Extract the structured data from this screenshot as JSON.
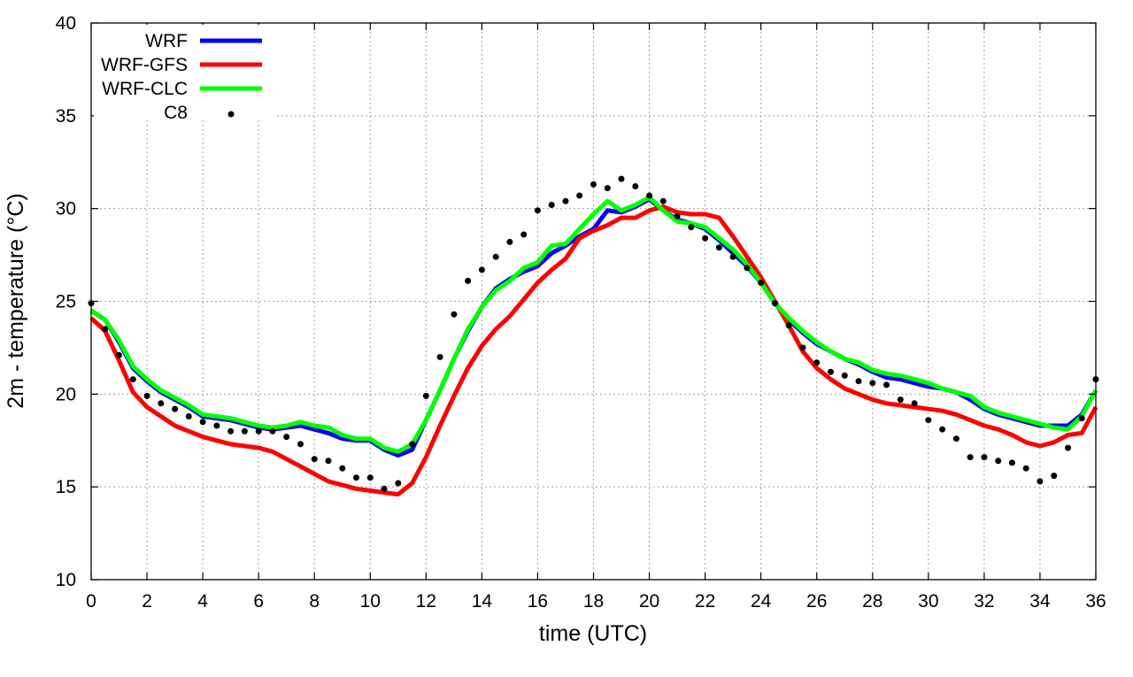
{
  "chart_data": {
    "type": "line",
    "title": "",
    "xlabel": "time (UTC)",
    "ylabel": "2m - temperature (°C)",
    "xlim": [
      0,
      36
    ],
    "ylim": [
      10,
      40
    ],
    "xticks": [
      0,
      2,
      4,
      6,
      8,
      10,
      12,
      14,
      16,
      18,
      20,
      22,
      24,
      26,
      28,
      30,
      32,
      34,
      36
    ],
    "yticks": [
      10,
      15,
      20,
      25,
      30,
      35,
      40
    ],
    "grid": true,
    "legend_position": "top-left",
    "series": [
      {
        "name": "WRF",
        "style": "line",
        "color": "#0000ff",
        "x": [
          0,
          0.5,
          1,
          1.5,
          2,
          2.5,
          3,
          3.5,
          4,
          4.5,
          5,
          5.5,
          6,
          6.5,
          7,
          7.5,
          8,
          8.5,
          9,
          9.5,
          10,
          10.5,
          11,
          11.5,
          12,
          12.5,
          13,
          13.5,
          14,
          14.5,
          15,
          15.5,
          16,
          16.5,
          17,
          17.5,
          18,
          18.5,
          19,
          19.5,
          20,
          20.5,
          21,
          21.5,
          22,
          22.5,
          23,
          23.5,
          24,
          24.5,
          25,
          25.5,
          26,
          26.5,
          27,
          27.5,
          28,
          28.5,
          29,
          29.5,
          30,
          30.5,
          31,
          31.5,
          32,
          32.5,
          33,
          33.5,
          34,
          34.5,
          35,
          35.5,
          36
        ],
        "y": [
          24.5,
          24.0,
          22.8,
          21.4,
          20.7,
          20.1,
          19.7,
          19.3,
          18.8,
          18.7,
          18.6,
          18.4,
          18.2,
          18.1,
          18.2,
          18.3,
          18.1,
          17.9,
          17.6,
          17.5,
          17.5,
          17.0,
          16.7,
          17.0,
          18.6,
          20.2,
          21.9,
          23.4,
          24.7,
          25.7,
          26.2,
          26.6,
          26.9,
          27.6,
          28.0,
          28.5,
          28.9,
          29.9,
          29.8,
          30.1,
          30.5,
          29.9,
          29.4,
          29.2,
          28.9,
          28.3,
          27.6,
          26.9,
          26.0,
          24.9,
          24.0,
          23.3,
          22.7,
          22.3,
          21.9,
          21.6,
          21.2,
          20.9,
          20.8,
          20.6,
          20.4,
          20.3,
          20.1,
          19.7,
          19.2,
          18.9,
          18.7,
          18.5,
          18.3,
          18.3,
          18.3,
          18.9,
          20.2
        ]
      },
      {
        "name": "WRF-GFS",
        "style": "line",
        "color": "#ff0000",
        "x": [
          0,
          0.5,
          1,
          1.5,
          2,
          2.5,
          3,
          3.5,
          4,
          4.5,
          5,
          5.5,
          6,
          6.5,
          7,
          7.5,
          8,
          8.5,
          9,
          9.5,
          10,
          10.5,
          11,
          11.5,
          12,
          12.5,
          13,
          13.5,
          14,
          14.5,
          15,
          15.5,
          16,
          16.5,
          17,
          17.5,
          18,
          18.5,
          19,
          19.5,
          20,
          20.5,
          21,
          21.5,
          22,
          22.5,
          23,
          23.5,
          24,
          24.5,
          25,
          25.5,
          26,
          26.5,
          27,
          27.5,
          28,
          28.5,
          29,
          29.5,
          30,
          30.5,
          31,
          31.5,
          32,
          32.5,
          33,
          33.5,
          34,
          34.5,
          35,
          35.5,
          36
        ],
        "y": [
          24.1,
          23.4,
          21.8,
          20.1,
          19.3,
          18.8,
          18.3,
          18.0,
          17.7,
          17.5,
          17.3,
          17.2,
          17.1,
          16.9,
          16.5,
          16.1,
          15.7,
          15.3,
          15.1,
          14.9,
          14.8,
          14.7,
          14.6,
          15.2,
          16.6,
          18.3,
          19.9,
          21.4,
          22.6,
          23.5,
          24.2,
          25.1,
          26.0,
          26.7,
          27.3,
          28.4,
          28.8,
          29.1,
          29.5,
          29.5,
          29.9,
          30.1,
          29.8,
          29.7,
          29.7,
          29.5,
          28.5,
          27.4,
          26.3,
          25.0,
          23.7,
          22.3,
          21.4,
          20.8,
          20.3,
          20.0,
          19.7,
          19.5,
          19.4,
          19.3,
          19.2,
          19.1,
          18.9,
          18.6,
          18.3,
          18.1,
          17.8,
          17.4,
          17.2,
          17.4,
          17.8,
          17.9,
          19.3
        ]
      },
      {
        "name": "WRF-CLC",
        "style": "line",
        "color": "#00ff00",
        "x": [
          0,
          0.5,
          1,
          1.5,
          2,
          2.5,
          3,
          3.5,
          4,
          4.5,
          5,
          5.5,
          6,
          6.5,
          7,
          7.5,
          8,
          8.5,
          9,
          9.5,
          10,
          10.5,
          11,
          11.5,
          12,
          12.5,
          13,
          13.5,
          14,
          14.5,
          15,
          15.5,
          16,
          16.5,
          17,
          17.5,
          18,
          18.5,
          19,
          19.5,
          20,
          20.5,
          21,
          21.5,
          22,
          22.5,
          23,
          23.5,
          24,
          24.5,
          25,
          25.5,
          26,
          26.5,
          27,
          27.5,
          28,
          28.5,
          29,
          29.5,
          30,
          30.5,
          31,
          31.5,
          32,
          32.5,
          33,
          33.5,
          34,
          34.5,
          35,
          35.5,
          36
        ],
        "y": [
          24.5,
          24.0,
          22.9,
          21.5,
          20.8,
          20.2,
          19.8,
          19.4,
          18.9,
          18.8,
          18.7,
          18.5,
          18.3,
          18.2,
          18.3,
          18.5,
          18.3,
          18.2,
          17.8,
          17.6,
          17.6,
          17.1,
          16.9,
          17.3,
          18.6,
          20.2,
          21.9,
          23.5,
          24.7,
          25.6,
          26.1,
          26.8,
          27.1,
          28.0,
          28.1,
          28.9,
          29.7,
          30.4,
          29.9,
          30.2,
          30.6,
          29.9,
          29.3,
          29.2,
          29.0,
          28.4,
          27.8,
          27.0,
          26.0,
          24.9,
          24.1,
          23.4,
          22.8,
          22.3,
          21.9,
          21.7,
          21.3,
          21.1,
          21.0,
          20.8,
          20.6,
          20.3,
          20.1,
          19.9,
          19.3,
          19.0,
          18.8,
          18.6,
          18.4,
          18.2,
          18.1,
          18.8,
          20.2
        ]
      },
      {
        "name": "C8",
        "style": "points",
        "color": "#000000",
        "x": [
          0,
          0.5,
          1,
          1.5,
          2,
          2.5,
          3,
          3.5,
          4,
          4.5,
          5,
          5.5,
          6,
          6.5,
          7,
          7.5,
          8,
          8.5,
          9,
          9.5,
          10,
          10.5,
          11,
          11.5,
          12,
          12.5,
          13,
          13.5,
          14,
          14.5,
          15,
          15.5,
          16,
          16.5,
          17,
          17.5,
          18,
          18.5,
          19,
          19.5,
          20,
          20.5,
          21,
          21.5,
          22,
          22.5,
          23,
          23.5,
          24,
          24.5,
          25,
          25.5,
          26,
          26.5,
          27,
          27.5,
          28,
          28.5,
          29,
          29.5,
          30,
          30.5,
          31,
          31.5,
          32,
          32.5,
          33,
          33.5,
          34,
          34.5,
          35,
          35.5,
          36
        ],
        "y": [
          24.9,
          23.5,
          22.1,
          20.8,
          19.9,
          19.5,
          19.2,
          18.8,
          18.5,
          18.3,
          18.0,
          18.0,
          18.0,
          18.0,
          17.7,
          17.3,
          16.5,
          16.4,
          16.0,
          15.5,
          15.5,
          14.9,
          15.2,
          17.3,
          19.9,
          22.0,
          24.3,
          26.1,
          26.7,
          27.4,
          28.2,
          28.6,
          29.9,
          30.2,
          30.4,
          30.7,
          31.3,
          31.1,
          31.6,
          31.2,
          30.7,
          30.4,
          29.6,
          29.0,
          28.4,
          27.9,
          27.4,
          26.8,
          26.0,
          24.9,
          23.7,
          22.5,
          21.7,
          21.2,
          21.0,
          20.7,
          20.6,
          20.5,
          19.7,
          19.5,
          18.6,
          18.1,
          17.6,
          16.6,
          16.6,
          16.4,
          16.3,
          16.0,
          15.3,
          15.6,
          17.1,
          18.7,
          20.8
        ]
      }
    ]
  }
}
